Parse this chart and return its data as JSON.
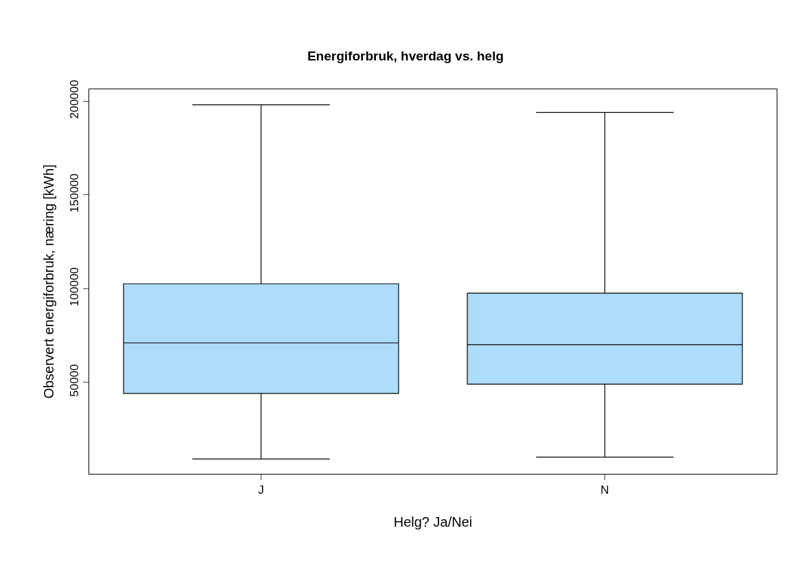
{
  "chart_data": {
    "type": "box",
    "title": "Energiforbruk, hverdag vs. helg",
    "xlabel": "Helg? Ja/Nei",
    "ylabel": "Observert energiforbruk, næring [kWh]",
    "categories": [
      "J",
      "N"
    ],
    "boxes": [
      {
        "low": 9000,
        "q1": 44000,
        "median": 71000,
        "q3": 102500,
        "high": 198000
      },
      {
        "low": 10000,
        "q1": 49000,
        "median": 70000,
        "q3": 97500,
        "high": 194000
      }
    ],
    "color": "#addcfd",
    "ylim": [
      1100,
      206300
    ],
    "yticks": [
      50000,
      100000,
      150000,
      200000
    ],
    "legend": false
  }
}
